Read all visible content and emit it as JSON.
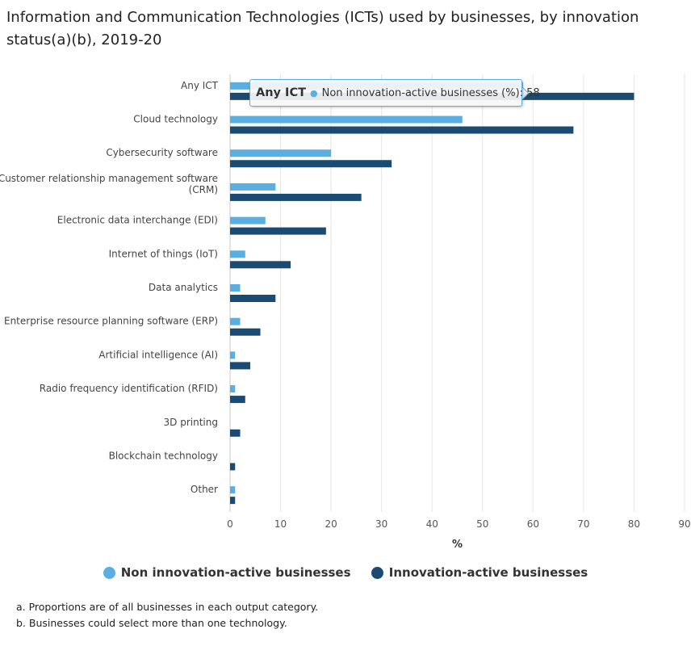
{
  "title": "Information and Communication Technologies (ICTs) used by businesses, by innovation status(a)(b), 2019-20",
  "chart_data": {
    "type": "bar",
    "orientation": "horizontal",
    "categories": [
      "Any ICT",
      "Cloud technology",
      "Cybersecurity software",
      "Customer relationship management software (CRM)",
      "Electronic data interchange (EDI)",
      "Internet of things (IoT)",
      "Data analytics",
      "Enterprise resource planning software (ERP)",
      "Artificial intelligence (AI)",
      "Radio frequency identification (RFID)",
      "3D printing",
      "Blockchain technology",
      "Other"
    ],
    "category_lines": [
      [
        "Any ICT"
      ],
      [
        "Cloud technology"
      ],
      [
        "Cybersecurity software"
      ],
      [
        "Customer relationship management software",
        "(CRM)"
      ],
      [
        "Electronic data interchange (EDI)"
      ],
      [
        "Internet of things (IoT)"
      ],
      [
        "Data analytics"
      ],
      [
        "Enterprise resource planning software (ERP)"
      ],
      [
        "Artificial intelligence (AI)"
      ],
      [
        "Radio frequency identification (RFID)"
      ],
      [
        "3D printing"
      ],
      [
        "Blockchain technology"
      ],
      [
        "Other"
      ]
    ],
    "series": [
      {
        "name": "Non innovation-active businesses",
        "color": "#5aaee0",
        "values": [
          58,
          46,
          20,
          9,
          7,
          3,
          2,
          2,
          1,
          1,
          0,
          0,
          1
        ]
      },
      {
        "name": "Innovation-active businesses",
        "color": "#1b4a72",
        "values": [
          80,
          68,
          32,
          26,
          19,
          12,
          9,
          6,
          4,
          3,
          2,
          1,
          1
        ]
      }
    ],
    "xlabel": "%",
    "xlim": [
      0,
      90
    ],
    "xticks": [
      0,
      10,
      20,
      30,
      40,
      50,
      60,
      70,
      80,
      90
    ],
    "grid": "vertical",
    "legend_position": "bottom"
  },
  "tooltip": {
    "category": "Any ICT",
    "text": "Non innovation-active businesses (%): 58"
  },
  "legend": [
    {
      "label": "Non innovation-active businesses",
      "color": "#5aaee0"
    },
    {
      "label": "Innovation-active businesses",
      "color": "#1b4a72"
    }
  ],
  "footnotes": [
    "a. Proportions are of all businesses in each output category.",
    "b. Businesses could select more than one technology."
  ]
}
